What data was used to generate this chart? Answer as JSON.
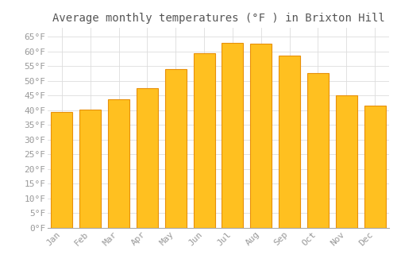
{
  "title": "Average monthly temperatures (°F ) in Brixton Hill",
  "months": [
    "Jan",
    "Feb",
    "Mar",
    "Apr",
    "May",
    "Jun",
    "Jul",
    "Aug",
    "Sep",
    "Oct",
    "Nov",
    "Dec"
  ],
  "values": [
    39.5,
    40.1,
    43.7,
    47.5,
    54.0,
    59.5,
    63.0,
    62.5,
    58.5,
    52.5,
    45.0,
    41.5
  ],
  "bar_color": "#FFC020",
  "bar_edge_color": "#E8900A",
  "background_color": "#FFFFFF",
  "grid_color": "#DDDDDD",
  "ylim": [
    0,
    68
  ],
  "yticks": [
    0,
    5,
    10,
    15,
    20,
    25,
    30,
    35,
    40,
    45,
    50,
    55,
    60,
    65
  ],
  "title_fontsize": 10,
  "tick_fontsize": 8,
  "tick_color": "#999999"
}
